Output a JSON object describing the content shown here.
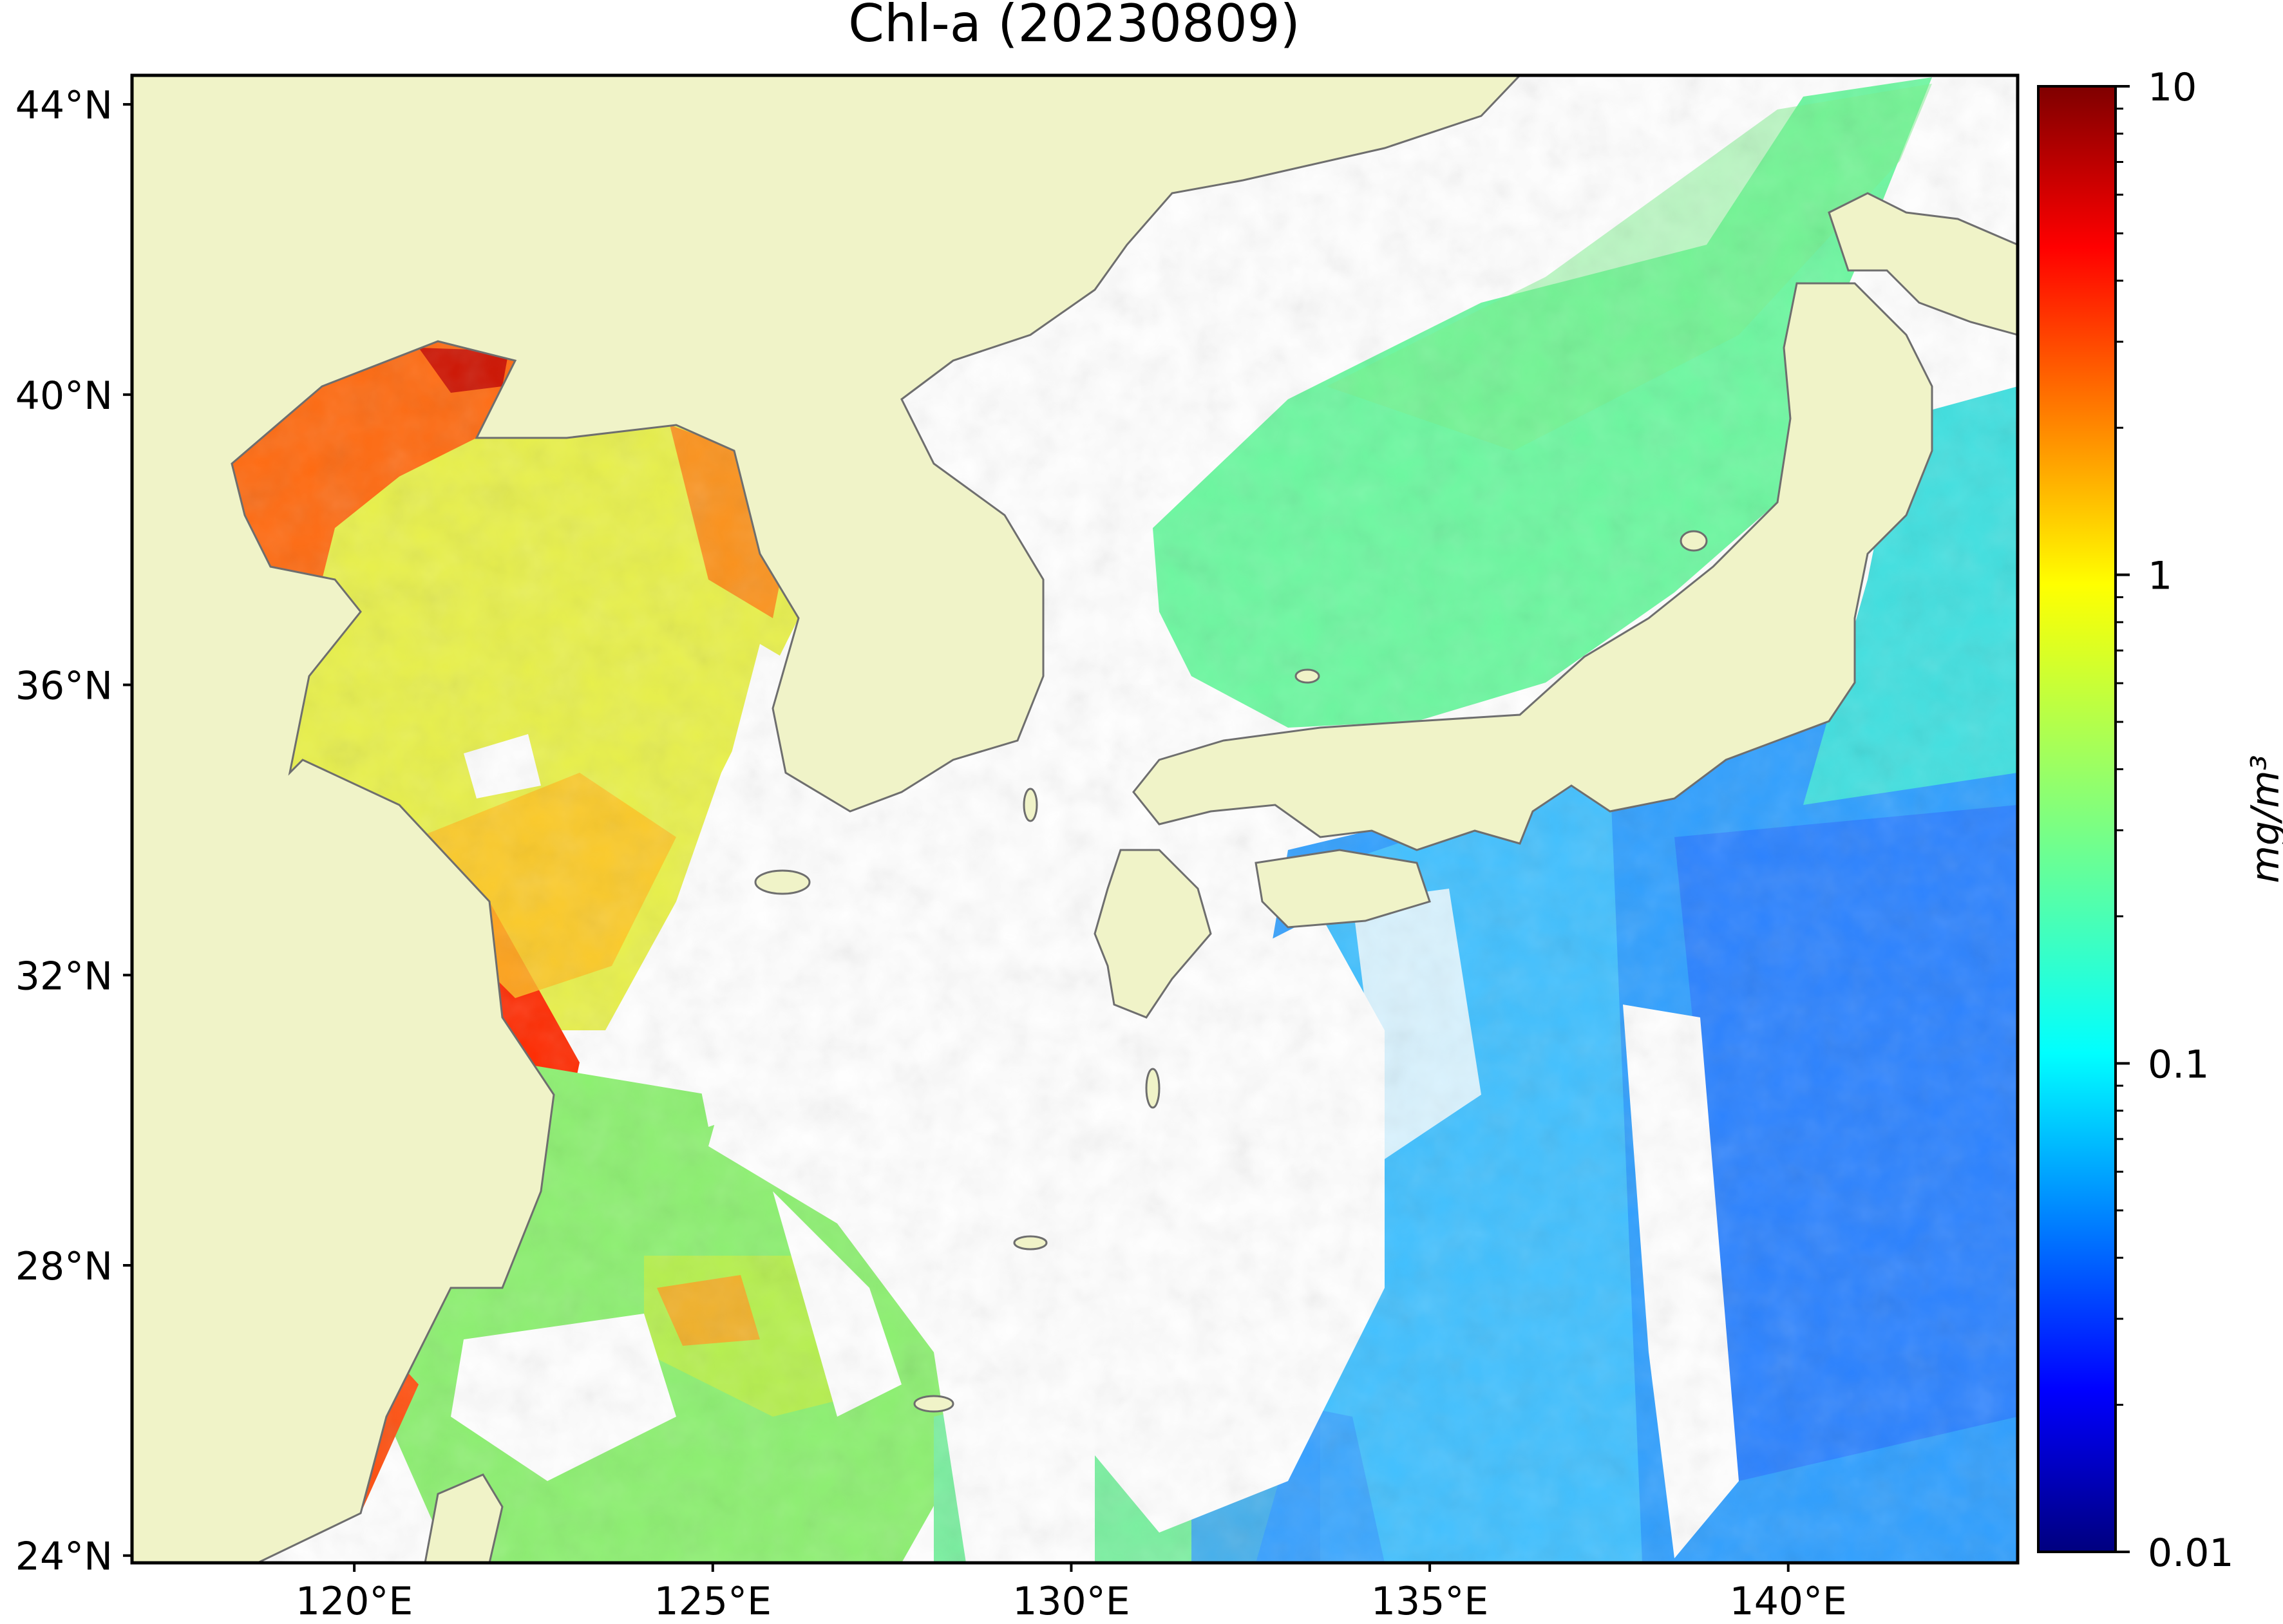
{
  "title": "Chl-a (20230809)",
  "map": {
    "lat_labels": [
      {
        "lat": 44,
        "label": "44°N"
      },
      {
        "lat": 40,
        "label": "40°N"
      },
      {
        "lat": 36,
        "label": "36°N"
      },
      {
        "lat": 32,
        "label": "32°N"
      },
      {
        "lat": 28,
        "label": "28°N"
      },
      {
        "lat": 24,
        "label": "24°N"
      }
    ],
    "lon_labels": [
      {
        "lon": 120,
        "label": "120°E"
      },
      {
        "lon": 125,
        "label": "125°E"
      },
      {
        "lon": 130,
        "label": "130°E"
      },
      {
        "lon": 135,
        "label": "135°E"
      },
      {
        "lon": 140,
        "label": "140°E"
      }
    ],
    "colors": {
      "land": "#f0f3c8",
      "coastline": "#6e6e6e",
      "no_data": "#ffffff"
    }
  },
  "colorbar": {
    "label": "mg/m³",
    "scale": "log",
    "range": [
      0.01,
      10
    ],
    "major_ticks": [
      {
        "value": 10,
        "label": "10"
      },
      {
        "value": 1,
        "label": "1"
      },
      {
        "value": 0.1,
        "label": "0.1"
      },
      {
        "value": 0.01,
        "label": "0.01"
      }
    ],
    "colormap": "jet",
    "colormap_stops": [
      "#00007f",
      "#0000ff",
      "#007fff",
      "#00ffff",
      "#7fff7f",
      "#ffff00",
      "#ff7f00",
      "#ff0000",
      "#7f0000"
    ]
  }
}
